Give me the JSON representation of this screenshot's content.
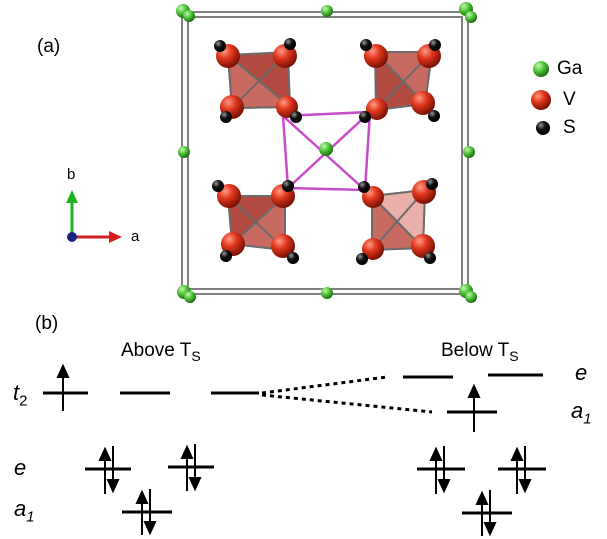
{
  "panel_a": {
    "label": "(a)",
    "legend": [
      {
        "element": "Ga",
        "color": "#4fc638"
      },
      {
        "element": "V",
        "color": "#e0361c"
      },
      {
        "element": "S",
        "color": "#111111"
      }
    ],
    "axes": {
      "b_label": "b",
      "a_label": "a",
      "b_color": "#1fb41f",
      "a_color": "#d41f1f",
      "c_color": "#1a237e"
    },
    "colors": {
      "cell_frame": "#808080",
      "tetra_face": "#c0554a",
      "bond": "#c94cc9"
    }
  },
  "panel_b": {
    "label": "(b)",
    "above": {
      "title_main": "Above T",
      "title_sub": "S",
      "t2_label": "t",
      "t2_sub": "2",
      "e_label": "e",
      "a1_label": "a",
      "a1_sub": "1"
    },
    "below": {
      "title_main": "Below T",
      "title_sub": "S",
      "e_label": "e",
      "a1_label": "a",
      "a1_sub": "1"
    }
  }
}
